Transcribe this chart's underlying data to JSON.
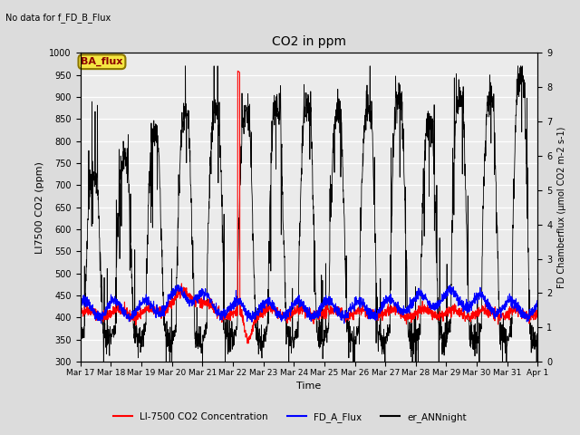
{
  "title": "CO2 in ppm",
  "top_left_text": "No data for f_FD_B_Flux",
  "box_label": "BA_flux",
  "ylabel_left": "LI7500 CO2 (ppm)",
  "ylabel_right": "FD Chamberflux (μmol CO2 m-2 s-1)",
  "xlabel": "Time",
  "ylim_left": [
    300,
    1000
  ],
  "ylim_right": [
    0.0,
    9.0
  ],
  "yticks_left": [
    300,
    350,
    400,
    450,
    500,
    550,
    600,
    650,
    700,
    750,
    800,
    850,
    900,
    950,
    1000
  ],
  "yticks_right": [
    0.0,
    1.0,
    2.0,
    3.0,
    4.0,
    5.0,
    6.0,
    7.0,
    8.0,
    9.0
  ],
  "bg_color": "#dcdcdc",
  "plot_bg_color": "#ebebeb",
  "grid_color": "#ffffff",
  "legend_entries": [
    "LI-7500 CO2 Concentration",
    "FD_A_Flux",
    "er_ANNnight"
  ],
  "x_tick_labels": [
    "Mar 17",
    "Mar 18",
    "Mar 19",
    "Mar 20",
    "Mar 21",
    "Mar 22",
    "Mar 23",
    "Mar 24",
    "Mar 25",
    "Mar 26",
    "Mar 27",
    "Mar 28",
    "Mar 29",
    "Mar 30",
    "Mar 31",
    "Apr 1"
  ],
  "seed": 42
}
